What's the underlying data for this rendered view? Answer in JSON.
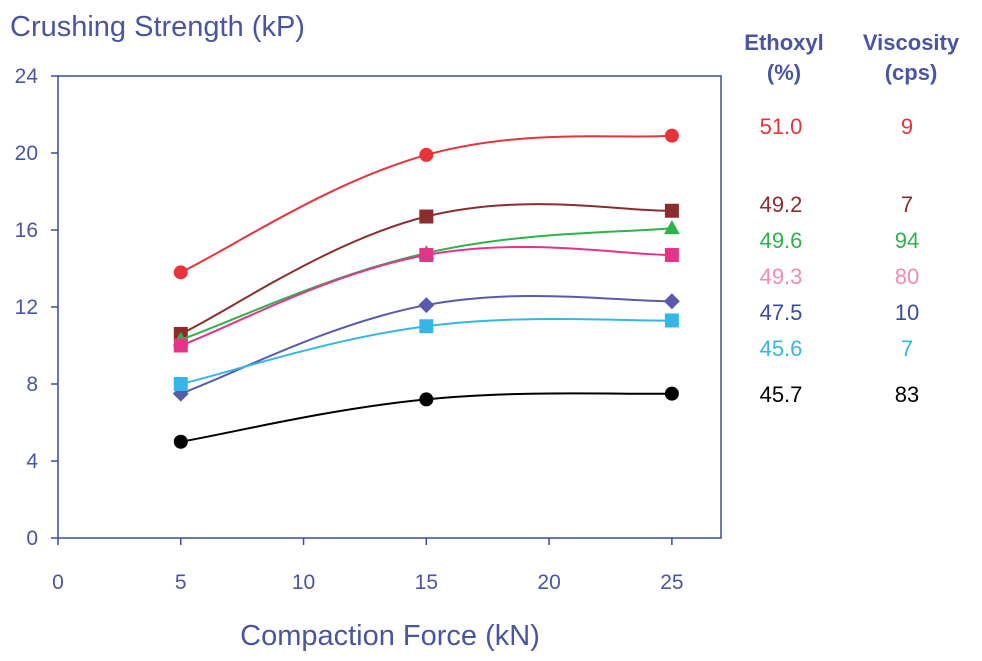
{
  "chart_data": {
    "type": "line",
    "title": "Crushing Strength (kP)",
    "xlabel": "Compaction Force (kN)",
    "ylabel": "",
    "xlim": [
      0,
      27
    ],
    "ylim": [
      0,
      24
    ],
    "x_ticks": [
      "0",
      "5",
      "10",
      "15",
      "20",
      "25"
    ],
    "y_ticks": [
      "0",
      "4",
      "8",
      "12",
      "16",
      "20",
      "24"
    ],
    "grid": false,
    "x": [
      5,
      15,
      25
    ],
    "legend_headers": {
      "ethoxyl": [
        "Ethoxyl",
        "(%)"
      ],
      "viscosity": [
        "Viscosity",
        "(cps)"
      ]
    },
    "series": [
      {
        "ethoxyl": "51.0",
        "viscosity": "9",
        "color": "#e8323c",
        "marker": "circle",
        "values": [
          13.8,
          19.9,
          20.9
        ]
      },
      {
        "ethoxyl": "49.2",
        "viscosity": "7",
        "color": "#8b2d2d",
        "marker": "square",
        "values": [
          10.6,
          16.7,
          17.0
        ]
      },
      {
        "ethoxyl": "49.6",
        "viscosity": "94",
        "color": "#2db34a",
        "marker": "triangle",
        "values": [
          10.3,
          14.8,
          16.1
        ]
      },
      {
        "ethoxyl": "49.3",
        "viscosity": "80",
        "color": "#e6338a",
        "legend_color": "#f08cb4",
        "marker": "square",
        "values": [
          10.0,
          14.7,
          14.7
        ]
      },
      {
        "ethoxyl": "47.5",
        "viscosity": "10",
        "color": "#5a5aad",
        "legend_color": "#3c4a9e",
        "marker": "diamond",
        "values": [
          7.5,
          12.1,
          12.3
        ]
      },
      {
        "ethoxyl": "45.6",
        "viscosity": "7",
        "color": "#35b6e6",
        "marker": "square",
        "values": [
          8.0,
          11.0,
          11.3
        ]
      },
      {
        "ethoxyl": "45.7",
        "viscosity": "83",
        "color": "#000000",
        "marker": "circle",
        "values": [
          5.0,
          7.2,
          7.5
        ]
      }
    ]
  }
}
